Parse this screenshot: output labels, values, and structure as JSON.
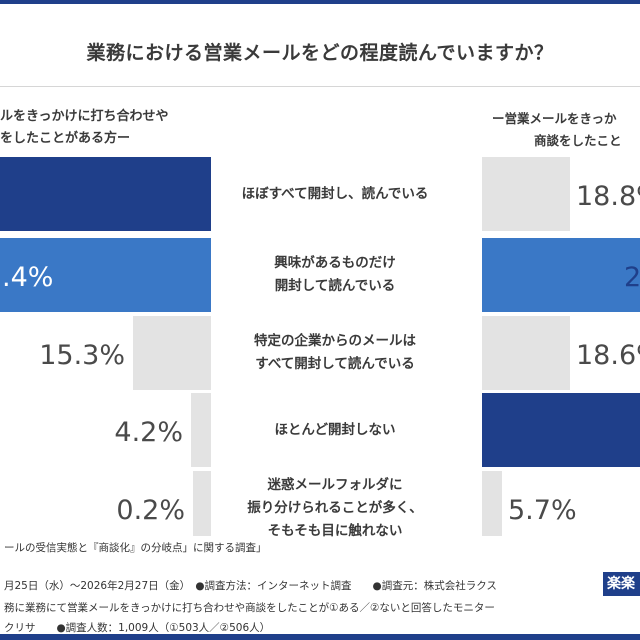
{
  "title": "業務における営業メールをどの程度読んでいますか？",
  "group_left": [
    "ルをきっかけに打ち合わせや",
    "をしたことがある方ー"
  ],
  "group_right": [
    "ー営業メールをきっか",
    "商談をしたこと"
  ],
  "colors": {
    "dark": "#1f3f8a",
    "mid": "#3a78c6",
    "gray": "#e3e3e3",
    "value_text": "#4a4a4a"
  },
  "chart_data": {
    "type": "bar",
    "orientation": "horizontal",
    "layout": "butterfly",
    "categories": [
      [
        "ほぼすべて開封し、読んでいる"
      ],
      [
        "興味があるものだけ",
        "開封して読んでいる"
      ],
      [
        "特定の企業からのメールは",
        "すべて開封して読んでいる"
      ],
      [
        "ほとんど開封しない"
      ],
      [
        "迷惑メールフォルダに",
        "振り分けられることが多く、",
        "そもそも目に触れない"
      ]
    ],
    "series": [
      {
        "values": [
          null,
          33.4,
          15.3,
          4.2,
          0.2
        ],
        "labels": [
          null,
          ".4%",
          "15.3%",
          "4.2%",
          "0.2%"
        ],
        "styles": [
          "dark",
          "mid",
          "gray",
          "gray",
          "gray"
        ]
      },
      {
        "values": [
          18.8,
          null,
          18.6,
          null,
          5.7
        ],
        "labels": [
          "18.8%",
          "2",
          "18.6%",
          null,
          "5.7%"
        ],
        "styles": [
          "gray",
          "mid",
          "gray",
          "dark",
          "gray"
        ]
      }
    ]
  },
  "footer": {
    "line1": "ールの受信実態と『商談化』の分岐点」に関する調査」",
    "line2": "月25日（水）～2026年2月27日（金）　●調査方法：インターネット調査　　●調査元：株式会社ラクス",
    "line3": "務に業務にて営業メールをきっかけに打ち合わせや商談をしたことが①ある／②ないと回答したモニター",
    "line4": "クリサ　　●調査人数：1,009人（①503人／②506人）",
    "logo": "楽楽"
  }
}
